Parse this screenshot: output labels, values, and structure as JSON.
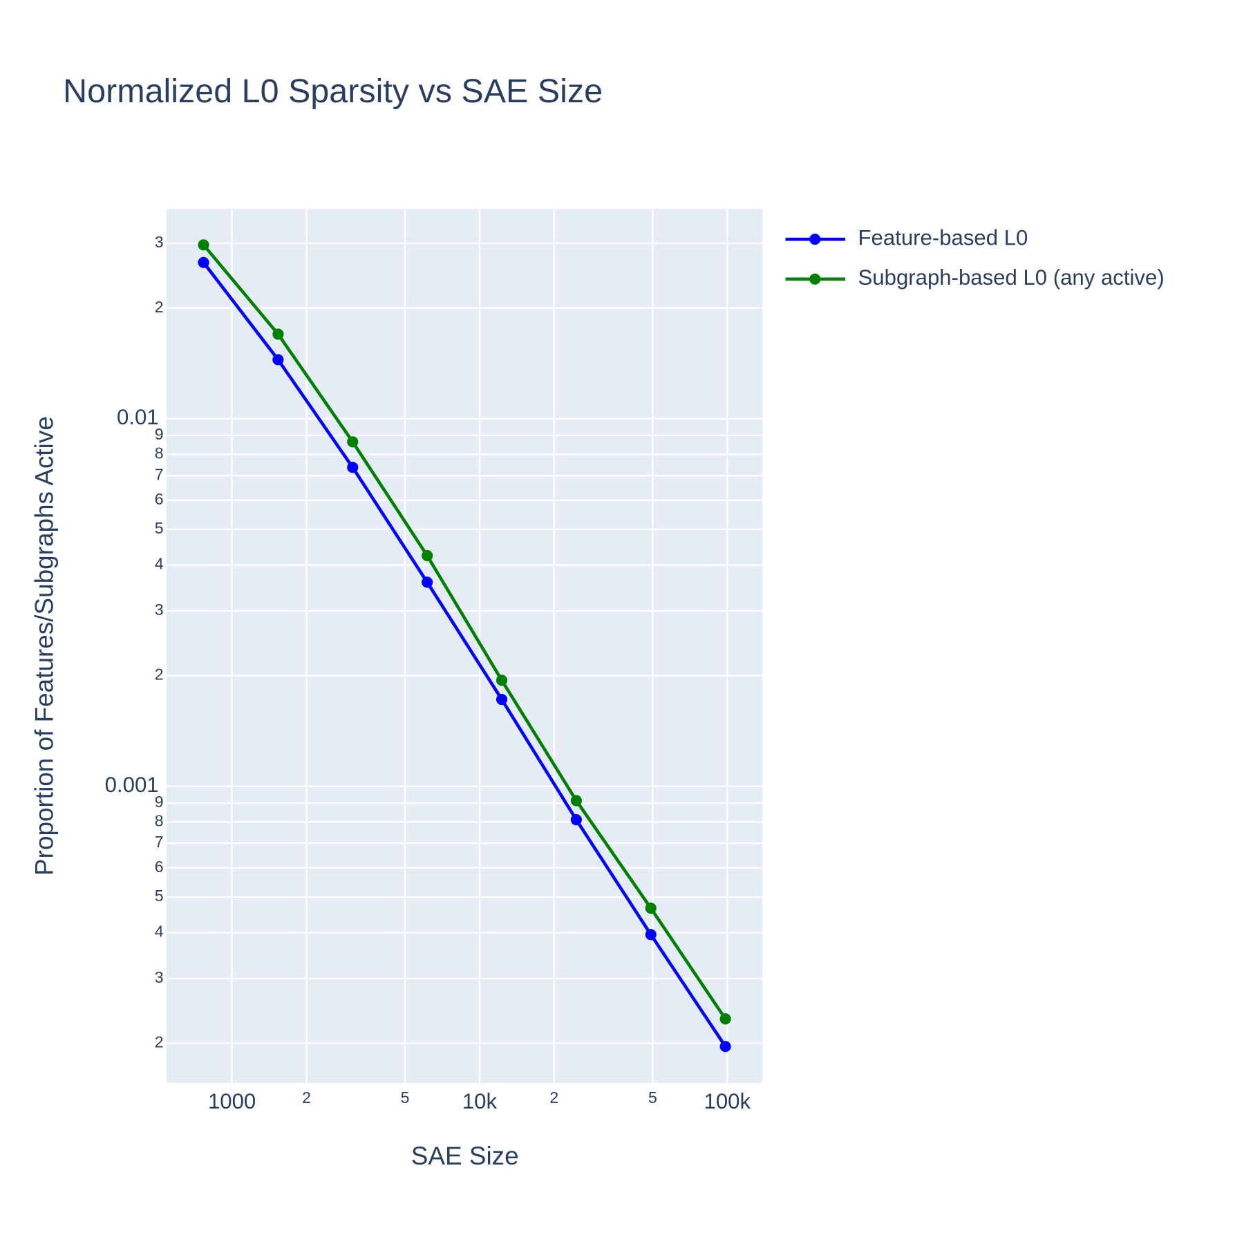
{
  "chart_data": {
    "type": "line",
    "title": "Normalized L0 Sparsity vs SAE Size",
    "x_label": "SAE Size",
    "y_label": "Proportion of Features/Subgraphs Active",
    "x": [
      768,
      1536,
      3072,
      6144,
      12288,
      24576,
      49152,
      98304
    ],
    "series": [
      {
        "name": "Feature-based L0",
        "color": "#0000ff",
        "values": [
          0.0266,
          0.01447,
          0.00737,
          0.00359,
          0.001723,
          0.000811,
          0.000395,
          0.000196
        ]
      },
      {
        "name": "Subgraph-based L0 (any active)",
        "color": "#008000",
        "values": [
          0.0297,
          0.01698,
          0.00865,
          0.00424,
          0.001943,
          0.000914,
          0.000466,
          0.000233
        ]
      }
    ],
    "xscale": "log",
    "yscale": "log",
    "xlim": [
      545,
      138600
    ],
    "ylim": [
      0.000156,
      0.0372
    ],
    "xticks": [
      1000,
      {
        "value": 2000,
        "label": "2"
      },
      {
        "value": 5000,
        "label": "5"
      },
      {
        "value": 10000,
        "label": "10k"
      },
      {
        "value": 20000,
        "label": "2"
      },
      {
        "value": 50000,
        "label": "5"
      },
      {
        "value": 100000,
        "label": "100k"
      }
    ],
    "yticks": [
      {
        "value": 0.03,
        "label": "3"
      },
      {
        "value": 0.02,
        "label": "2"
      },
      0.01,
      {
        "value": 0.009,
        "label": "9"
      },
      {
        "value": 0.008,
        "label": "8"
      },
      {
        "value": 0.007,
        "label": "7"
      },
      {
        "value": 0.006,
        "label": "6"
      },
      {
        "value": 0.005,
        "label": "5"
      },
      {
        "value": 0.004,
        "label": "4"
      },
      {
        "value": 0.003,
        "label": "3"
      },
      {
        "value": 0.002,
        "label": "2"
      },
      0.001,
      {
        "value": 0.0009,
        "label": "9"
      },
      {
        "value": 0.0008,
        "label": "8"
      },
      {
        "value": 0.0007,
        "label": "7"
      },
      {
        "value": 0.0006,
        "label": "6"
      },
      {
        "value": 0.0005,
        "label": "5"
      },
      {
        "value": 0.0004,
        "label": "4"
      },
      {
        "value": 0.0003,
        "label": "3"
      },
      {
        "value": 0.0002,
        "label": "2"
      }
    ],
    "grid": true,
    "legend": "right"
  }
}
